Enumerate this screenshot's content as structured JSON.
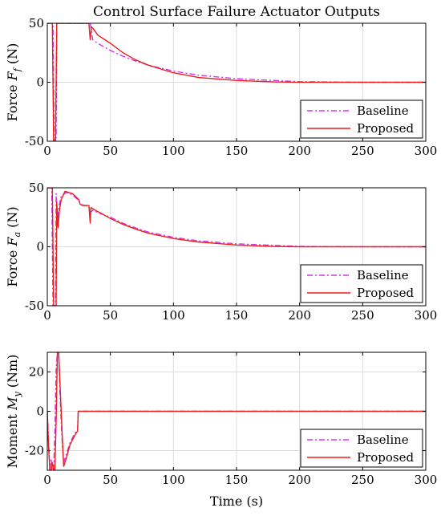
{
  "title": "Control Surface Failure Actuator Outputs",
  "xlabel": "Time (s)",
  "colors": {
    "baseline": "#d633f0",
    "proposed": "#ee1c1c"
  },
  "chart_data": [
    {
      "type": "line",
      "ylabel": "Force F_f (N)",
      "ylabel_main": "Force ",
      "ylabel_sym": "F",
      "ylabel_sub": "f",
      "ylabel_unit": " (N)",
      "xlim": [
        0,
        300
      ],
      "ylim": [
        -50,
        50
      ],
      "xticks": [
        "0",
        "50",
        "100",
        "150",
        "200",
        "250",
        "300"
      ],
      "yticks": [
        "-50",
        "0",
        "50"
      ],
      "legend_position": "bottom-right",
      "series": [
        {
          "name": "Baseline",
          "style": "dashdot",
          "x": [
            0,
            4.5,
            5.5,
            7.0,
            7.5,
            8.0,
            34,
            36,
            40,
            50,
            60,
            70,
            80,
            100,
            120,
            150,
            200,
            250,
            300
          ],
          "y": [
            50,
            50,
            -50,
            -50,
            50,
            50,
            50,
            36,
            33,
            27,
            22,
            18,
            14.5,
            9.5,
            6,
            3,
            0.5,
            0,
            0
          ]
        },
        {
          "name": "Proposed",
          "style": "solid",
          "x": [
            0,
            4.0,
            5.0,
            6.5,
            7.5,
            8.5,
            33,
            34,
            35,
            36,
            40,
            50,
            60,
            70,
            80,
            100,
            120,
            150,
            180,
            200,
            250,
            300
          ],
          "y": [
            50,
            50,
            -50,
            -50,
            50,
            50,
            50,
            36,
            47,
            46,
            40,
            33,
            25,
            19,
            14.5,
            8,
            4,
            1.5,
            0.3,
            0,
            0,
            0
          ]
        }
      ]
    },
    {
      "type": "line",
      "ylabel": "Force F_a (N)",
      "ylabel_main": "Force ",
      "ylabel_sym": "F",
      "ylabel_sub": "a",
      "ylabel_unit": " (N)",
      "xlim": [
        0,
        300
      ],
      "ylim": [
        -50,
        50
      ],
      "xticks": [
        "0",
        "50",
        "100",
        "150",
        "200",
        "250",
        "300"
      ],
      "yticks": [
        "-50",
        "0",
        "50"
      ],
      "legend_position": "bottom-right",
      "series": [
        {
          "name": "Baseline",
          "style": "dashdot",
          "x": [
            0,
            3.5,
            4.5,
            6.5,
            7.0,
            8.0,
            9,
            11,
            15,
            20,
            25,
            26,
            30,
            33,
            34,
            36,
            40,
            50,
            60,
            70,
            80,
            100,
            120,
            150,
            200,
            250,
            300
          ],
          "y": [
            50,
            50,
            -50,
            -50,
            45,
            18,
            33,
            43,
            46,
            44,
            39,
            36,
            35,
            33,
            29,
            31,
            29,
            25,
            20,
            16,
            12.5,
            8,
            5,
            2.5,
            0.3,
            0,
            0
          ]
        },
        {
          "name": "Proposed",
          "style": "solid",
          "x": [
            0,
            4.0,
            5.0,
            7.0,
            7.5,
            8.5,
            9.5,
            11,
            14,
            20,
            25,
            26,
            28,
            33,
            34,
            34.5,
            35,
            38,
            45,
            50,
            60,
            70,
            80,
            100,
            120,
            150,
            180,
            200,
            250,
            300
          ],
          "y": [
            50,
            50,
            -50,
            -50,
            38,
            16,
            30,
            40,
            47,
            45,
            40,
            36,
            35,
            35,
            20,
            33,
            33,
            31,
            27,
            24,
            19,
            15,
            11.5,
            7,
            4,
            1.5,
            0.3,
            0,
            0,
            0
          ]
        }
      ]
    },
    {
      "type": "line",
      "ylabel": "Moment M_y (Nm)",
      "ylabel_main": "Moment ",
      "ylabel_sym": "M",
      "ylabel_sub": "y",
      "ylabel_unit": " (Nm)",
      "xlim": [
        0,
        300
      ],
      "ylim": [
        -30,
        30
      ],
      "xticks": [
        "0",
        "50",
        "100",
        "150",
        "200",
        "250",
        "300"
      ],
      "yticks": [
        "-20",
        "0",
        "20"
      ],
      "legend_position": "bottom-right",
      "series": [
        {
          "name": "Baseline",
          "style": "dashdot",
          "x": [
            0,
            1,
            2,
            3,
            4,
            5,
            6,
            7,
            8,
            9,
            10,
            11,
            12,
            13,
            15,
            18,
            22,
            24,
            24.5,
            300
          ],
          "y": [
            0,
            -15,
            -30,
            -24,
            -30,
            -30,
            -10,
            22,
            30,
            30,
            10,
            -5,
            -18,
            -26,
            -22,
            -16,
            -11,
            -10,
            0,
            0
          ]
        },
        {
          "name": "Proposed",
          "style": "solid",
          "x": [
            0,
            1,
            2,
            3,
            4,
            5,
            6,
            7,
            8,
            9,
            10,
            11,
            12,
            13,
            15,
            18,
            22,
            24,
            24.5,
            300
          ],
          "y": [
            0,
            -18,
            -30,
            -30,
            -26,
            -30,
            -30,
            -5,
            30,
            30,
            15,
            0,
            -15,
            -28,
            -24,
            -17,
            -12,
            -10,
            0,
            0
          ]
        }
      ]
    }
  ]
}
